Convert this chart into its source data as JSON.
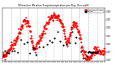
{
  "title": "Milwaukee Weather Evapotranspiration per Day (Ozs sq/ft)",
  "background_color": "#ffffff",
  "plot_bg_color": "#ffffff",
  "grid_color": "#888888",
  "legend_labels": [
    "Evapotranspiration",
    "Rainfall"
  ],
  "legend_colors": [
    "#ff0000",
    "#000000"
  ],
  "ylim": [
    -0.005,
    0.32
  ],
  "ytick_values": [
    0.0,
    0.05,
    0.1,
    0.15,
    0.2,
    0.25,
    0.3
  ],
  "ytick_labels": [
    "0.00",
    "0.05",
    "0.10",
    "0.15",
    "0.20",
    "0.25",
    "0.30"
  ],
  "n_points": 365,
  "vline_positions": [
    30,
    61,
    91,
    122,
    152,
    183,
    213,
    244,
    274,
    305,
    335
  ],
  "marker_size": 1.2,
  "red_seed": 99,
  "black_seed": 42
}
